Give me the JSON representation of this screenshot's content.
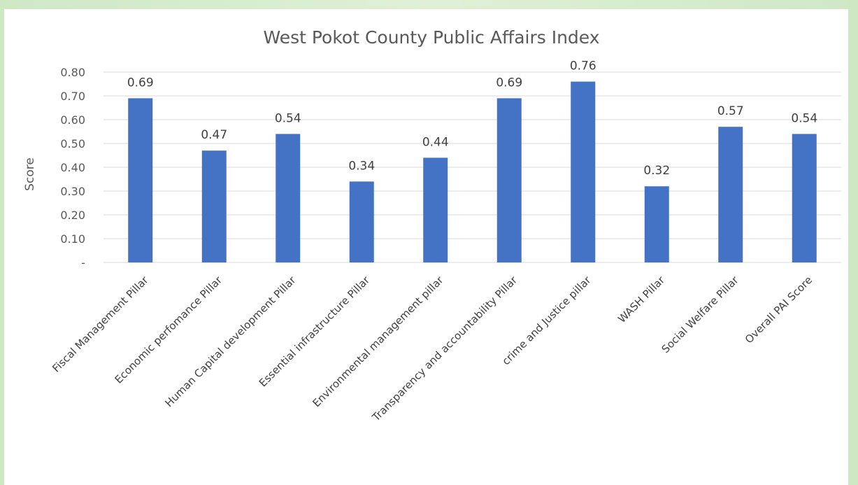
{
  "chart_data": {
    "type": "bar",
    "title": "West Pokot County Public Affairs Index",
    "xlabel": "",
    "ylabel": "Score",
    "ylim": [
      0,
      0.8
    ],
    "yticks": [
      "-",
      "0.10",
      "0.20",
      "0.30",
      "0.40",
      "0.50",
      "0.60",
      "0.70",
      "0.80"
    ],
    "grid": true,
    "legend": "none",
    "categories": [
      "Fiscal Management Pillar",
      "Economic perfomance Pillar",
      "Human Capital development Pillar",
      "Essential infrastructure Pillar",
      "Environmental management pillar",
      "Transparency and accountability Pillar",
      "crime and Justice pillar",
      "WASH Pillar",
      "Social Welfare Pillar",
      "Overall PAI Score"
    ],
    "values": [
      0.69,
      0.47,
      0.54,
      0.34,
      0.44,
      0.69,
      0.76,
      0.32,
      0.57,
      0.54
    ],
    "data_labels": [
      "0.69",
      "0.47",
      "0.54",
      "0.34",
      "0.44",
      "0.69",
      "0.76",
      "0.32",
      "0.57",
      "0.54"
    ],
    "bar_color": "#4472c4"
  }
}
